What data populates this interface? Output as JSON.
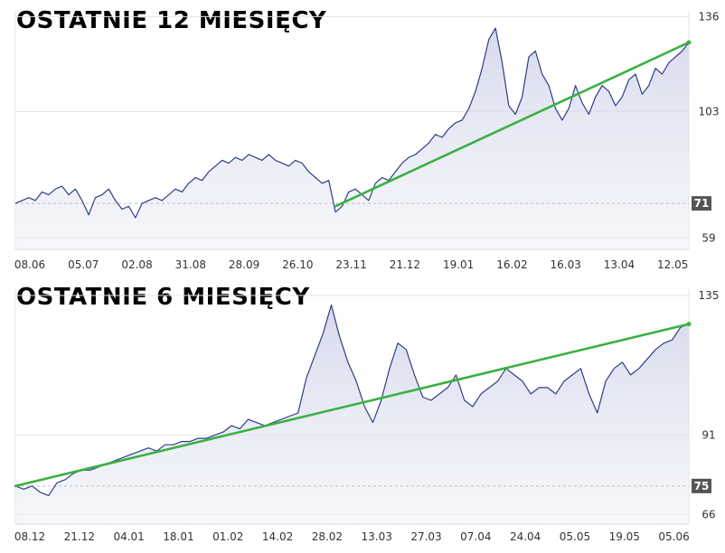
{
  "chart_data": [
    {
      "type": "area",
      "title": "OSTATNIE 12 MIESIĘCY",
      "x_ticks": [
        "08.06",
        "05.07",
        "02.08",
        "31.08",
        "28.09",
        "26.10",
        "23.11",
        "21.12",
        "19.01",
        "16.02",
        "16.03",
        "13.04",
        "12.05"
      ],
      "y_ticks": [
        136,
        103,
        59
      ],
      "ylim": [
        55,
        138
      ],
      "last_value_label": "71",
      "reference_value": 71,
      "series": [
        {
          "values": [
            71,
            72,
            73,
            72,
            75,
            74,
            76,
            77,
            74,
            76,
            72,
            67,
            73,
            74,
            76,
            72,
            69,
            70,
            66,
            71,
            72,
            73,
            72,
            74,
            76,
            75,
            78,
            80,
            79,
            82,
            84,
            86,
            85,
            87,
            86,
            88,
            87,
            86,
            88,
            86,
            85,
            84,
            86,
            85,
            82,
            80,
            78,
            79,
            68,
            70,
            75,
            76,
            74,
            72,
            78,
            80,
            79,
            82,
            85,
            87,
            88,
            90,
            92,
            95,
            94,
            97,
            99,
            100,
            104,
            110,
            118,
            128,
            132,
            120,
            105,
            102,
            108,
            122,
            124,
            116,
            112,
            104,
            100,
            104,
            112,
            106,
            102,
            108,
            112,
            110,
            105,
            108,
            114,
            116,
            109,
            112,
            118,
            116,
            120,
            122,
            124,
            127
          ],
          "color": "#2d3f86"
        }
      ],
      "trend": {
        "from": [
          48,
          70
        ],
        "to": [
          101,
          127
        ],
        "color": "#3cb043"
      }
    },
    {
      "type": "area",
      "title": "OSTATNIE 6 MIESIĘCY",
      "x_ticks": [
        "08.12",
        "21.12",
        "04.01",
        "18.01",
        "01.02",
        "14.02",
        "28.02",
        "13.03",
        "27.03",
        "07.04",
        "24.04",
        "05.05",
        "19.05",
        "05.06"
      ],
      "y_ticks": [
        135,
        91,
        66
      ],
      "ylim": [
        63,
        137
      ],
      "last_value_label": "75",
      "reference_value": 75,
      "series": [
        {
          "values": [
            75,
            74,
            75,
            73,
            72,
            76,
            77,
            79,
            80,
            80,
            81,
            82,
            83,
            84,
            85,
            86,
            87,
            86,
            88,
            88,
            89,
            89,
            90,
            90,
            91,
            92,
            94,
            93,
            96,
            95,
            94,
            95,
            96,
            97,
            98,
            109,
            116,
            123,
            132,
            122,
            114,
            108,
            100,
            95,
            102,
            112,
            120,
            118,
            110,
            103,
            102,
            104,
            106,
            110,
            102,
            100,
            104,
            106,
            108,
            112,
            110,
            108,
            104,
            106,
            106,
            104,
            108,
            110,
            112,
            104,
            98,
            108,
            112,
            114,
            110,
            112,
            115,
            118,
            120,
            121,
            125,
            126
          ],
          "color": "#2d3f86"
        }
      ],
      "trend": {
        "from": [
          0,
          75
        ],
        "to": [
          81,
          126
        ],
        "color": "#3cb043"
      }
    }
  ]
}
